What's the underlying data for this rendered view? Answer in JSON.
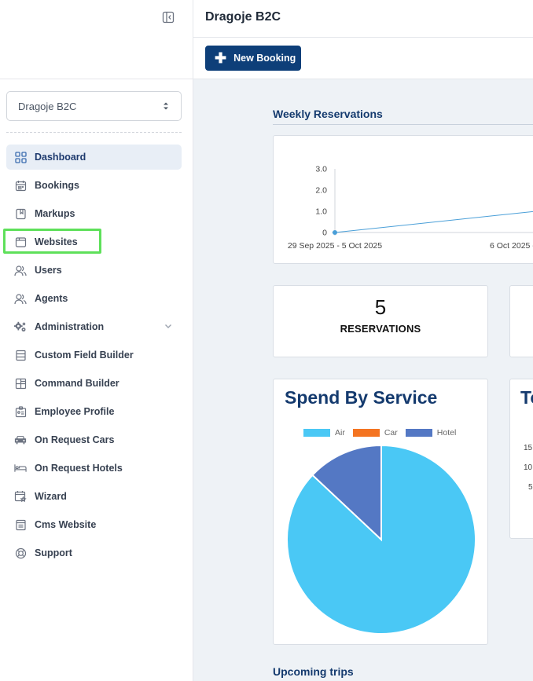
{
  "sidebar": {
    "org_select": "Dragoje B2C",
    "items": [
      {
        "label": "Dashboard",
        "icon": "grid-icon",
        "active": true
      },
      {
        "label": "Bookings",
        "icon": "calendar-icon"
      },
      {
        "label": "Markups",
        "icon": "bookmark-icon"
      },
      {
        "label": "Websites",
        "icon": "browser-icon"
      },
      {
        "label": "Users",
        "icon": "users-icon"
      },
      {
        "label": "Agents",
        "icon": "agents-icon"
      },
      {
        "label": "Administration",
        "icon": "gears-icon"
      },
      {
        "label": "Custom Field Builder",
        "icon": "list-icon"
      },
      {
        "label": "Command Builder",
        "icon": "layout-icon"
      },
      {
        "label": "Employee Profile",
        "icon": "id-card-icon"
      },
      {
        "label": "On Request Cars",
        "icon": "car-icon"
      },
      {
        "label": "On Request Hotels",
        "icon": "bed-icon"
      },
      {
        "label": "Wizard",
        "icon": "wizard-icon"
      },
      {
        "label": "Cms Website",
        "icon": "document-icon"
      },
      {
        "label": "Support",
        "icon": "lifebuoy-icon"
      }
    ]
  },
  "header": {
    "title": "Dragoje B2C"
  },
  "toolbar": {
    "new_booking": "New Booking"
  },
  "weekly": {
    "title": "Weekly Reservations",
    "chart_data": {
      "type": "line",
      "x": [
        "29 Sep 2025 - 5 Oct 2025",
        "6 Oct 2025 -"
      ],
      "yticks": [
        "3.0",
        "2.0",
        "1.0",
        "0"
      ],
      "values": [
        0,
        1
      ],
      "ylim": [
        0,
        3
      ],
      "color": "#4a9fd8"
    }
  },
  "stats": {
    "value": "5",
    "label": "RESERVATIONS"
  },
  "spend": {
    "title": "Spend By Service",
    "chart_data": {
      "type": "pie",
      "labels": [
        "Air",
        "Car",
        "Hotel"
      ],
      "values": [
        87,
        0,
        13
      ],
      "colors": [
        "#4ac8f5",
        "#f47421",
        "#5478c4"
      ]
    }
  },
  "second_chart": {
    "title": "To",
    "yticks": [
      "15",
      "10",
      "5"
    ]
  },
  "upcoming": {
    "title": "Upcoming trips"
  }
}
